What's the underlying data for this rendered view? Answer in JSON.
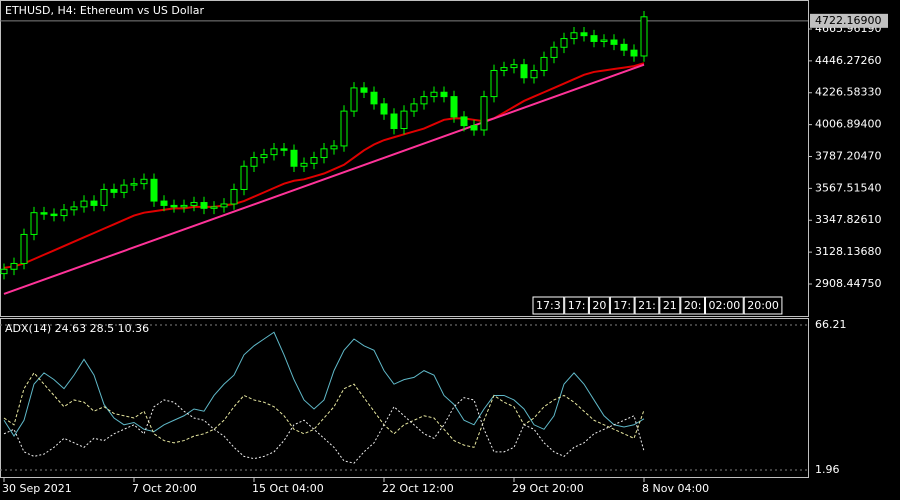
{
  "chart_data": {
    "type": "candlestick",
    "title": "ETHUSD, H4:  Ethereum vs US Dollar",
    "categories": [
      "30 Sep 2021",
      null,
      null,
      null,
      null,
      null,
      null,
      null,
      null,
      null,
      null,
      null,
      null,
      "7 Oct 20:00",
      null,
      null,
      null,
      null,
      null,
      null,
      null,
      null,
      null,
      null,
      null,
      "15 Oct 04:00",
      null,
      null,
      null,
      null,
      null,
      null,
      null,
      null,
      null,
      null,
      null,
      null,
      "22 Oct 12:00",
      null,
      null,
      null,
      null,
      null,
      null,
      null,
      null,
      null,
      null,
      null,
      null,
      "29 Oct 20:00",
      null,
      null,
      null,
      null,
      null,
      null,
      null,
      null,
      null,
      null,
      null,
      null,
      "8 Nov 04:00"
    ],
    "open": [
      2980,
      3010,
      3050,
      3250,
      3400,
      3390,
      3380,
      3420,
      3440,
      3480,
      3450,
      3560,
      3540,
      3590,
      3600,
      3630,
      3480,
      3450,
      3440,
      3450,
      3470,
      3430,
      3440,
      3460,
      3560,
      3720,
      3780,
      3800,
      3840,
      3830,
      3720,
      3740,
      3780,
      3840,
      3860,
      4100,
      4260,
      4230,
      4150,
      4080,
      3980,
      4100,
      4150,
      4200,
      4230,
      4200,
      4060,
      4000,
      3970,
      4200,
      4380,
      4400,
      4420,
      4330,
      4380,
      4470,
      4540,
      4600,
      4640,
      4620,
      4580,
      4590,
      4560,
      4520,
      4480
    ],
    "high": [
      3050,
      3090,
      3290,
      3440,
      3440,
      3430,
      3460,
      3480,
      3520,
      3520,
      3600,
      3600,
      3630,
      3640,
      3670,
      3670,
      3520,
      3490,
      3490,
      3510,
      3510,
      3480,
      3500,
      3600,
      3760,
      3820,
      3840,
      3880,
      3880,
      3870,
      3780,
      3820,
      3880,
      3900,
      4140,
      4300,
      4300,
      4270,
      4190,
      4120,
      4140,
      4190,
      4240,
      4270,
      4270,
      4240,
      4100,
      4040,
      4240,
      4420,
      4440,
      4460,
      4460,
      4420,
      4510,
      4580,
      4640,
      4680,
      4680,
      4660,
      4630,
      4630,
      4600,
      4560,
      4790
    ],
    "low": [
      2940,
      2970,
      3010,
      3210,
      3350,
      3340,
      3340,
      3380,
      3400,
      3410,
      3410,
      3500,
      3500,
      3550,
      3560,
      3440,
      3410,
      3400,
      3400,
      3410,
      3390,
      3390,
      3400,
      3420,
      3520,
      3680,
      3740,
      3760,
      3790,
      3680,
      3680,
      3700,
      3740,
      3800,
      3820,
      4060,
      4190,
      4110,
      4040,
      3940,
      3940,
      4060,
      4110,
      4160,
      4160,
      4020,
      3960,
      3930,
      3930,
      4160,
      4340,
      4360,
      4290,
      4290,
      4340,
      4430,
      4500,
      4560,
      4580,
      4540,
      4540,
      4520,
      4480,
      4440,
      4440
    ],
    "close": [
      3010,
      3050,
      3250,
      3400,
      3390,
      3380,
      3420,
      3440,
      3480,
      3450,
      3560,
      3540,
      3590,
      3600,
      3630,
      3480,
      3450,
      3440,
      3450,
      3470,
      3430,
      3440,
      3460,
      3560,
      3720,
      3780,
      3800,
      3840,
      3830,
      3720,
      3740,
      3780,
      3840,
      3860,
      4100,
      4260,
      4230,
      4150,
      4080,
      3980,
      4100,
      4150,
      4200,
      4230,
      4200,
      4060,
      4000,
      3970,
      4200,
      4380,
      4400,
      4420,
      4330,
      4380,
      4470,
      4540,
      4600,
      4640,
      4620,
      4580,
      4590,
      4560,
      4520,
      4480,
      4750
    ],
    "candle_color": "#00ff00",
    "ylim": [
      2687.9,
      4865.8
    ],
    "yticks": [
      {
        "value": 4665.9619,
        "label": "4665.96190"
      },
      {
        "value": 4446.2726,
        "label": "4446.27260"
      },
      {
        "value": 4226.5833,
        "label": "4226.58330"
      },
      {
        "value": 4006.894,
        "label": "4006.89400"
      },
      {
        "value": 3787.2047,
        "label": "3787.20470"
      },
      {
        "value": 3567.5154,
        "label": "3567.51540"
      },
      {
        "value": 3347.8261,
        "label": "3347.82610"
      },
      {
        "value": 3128.1368,
        "label": "3128.13680"
      },
      {
        "value": 2908.4475,
        "label": "2908.44750"
      }
    ],
    "current_price": {
      "value": 4722.169,
      "label": "4722.16900"
    },
    "overlays": [
      {
        "color": "#e00000",
        "values": [
          3020,
          3030,
          3050,
          3080,
          3110,
          3140,
          3170,
          3200,
          3230,
          3260,
          3290,
          3320,
          3350,
          3380,
          3400,
          3410,
          3420,
          3430,
          3430,
          3440,
          3440,
          3440,
          3450,
          3460,
          3480,
          3510,
          3540,
          3570,
          3600,
          3620,
          3630,
          3650,
          3670,
          3700,
          3730,
          3780,
          3830,
          3870,
          3900,
          3920,
          3940,
          3960,
          3980,
          4010,
          4040,
          4050,
          4050,
          4040,
          4030,
          4050,
          4090,
          4130,
          4170,
          4200,
          4230,
          4260,
          4290,
          4320,
          4350,
          4370,
          4380,
          4390,
          4400,
          4410,
          4430
        ]
      },
      {
        "color": "#ff3399",
        "x": [
          0,
          64
        ],
        "values": [
          2840,
          4420
        ]
      }
    ],
    "time_tags": [
      "17:3",
      "17:",
      "20",
      "17:",
      "21:",
      "21",
      "20:",
      "02:00",
      "20:00"
    ],
    "indicator": {
      "label": "ADX(14)",
      "ylim": [
        -1.58,
        69.31
      ],
      "yticks": [
        66.21,
        1.96
      ],
      "series": [
        {
          "color": "#5fb8c8",
          "dash": "none",
          "values": [
            24,
            17,
            24,
            40,
            45,
            42,
            38,
            44,
            51,
            44,
            31,
            25,
            22,
            23,
            20,
            19,
            22,
            24,
            26,
            29,
            28,
            35,
            40,
            44,
            53,
            57,
            60,
            63,
            53,
            42,
            33,
            29,
            33,
            46,
            55,
            60,
            57,
            55,
            46,
            40,
            42,
            43,
            46,
            44,
            35,
            31,
            24,
            22,
            29,
            35,
            35,
            33,
            29,
            22,
            20,
            26,
            40,
            45,
            40,
            33,
            26,
            22,
            21,
            22,
            24.63
          ]
        },
        {
          "color": "#e8e8a0",
          "dash": "3 2",
          "values": [
            25,
            22,
            38,
            45,
            40,
            35,
            30,
            33,
            32,
            28,
            30,
            27,
            26,
            25,
            28,
            18,
            15,
            14,
            15,
            17,
            18,
            20,
            24,
            30,
            35,
            33,
            32,
            30,
            26,
            20,
            18,
            20,
            25,
            30,
            38,
            40,
            34,
            28,
            22,
            18,
            22,
            24,
            26,
            25,
            20,
            15,
            13,
            12,
            24,
            35,
            32,
            30,
            22,
            25,
            30,
            33,
            35,
            32,
            28,
            24,
            22,
            20,
            18,
            16,
            28.5
          ]
        },
        {
          "color": "#f0f0f0",
          "dash": "2 2",
          "values": [
            18,
            20,
            10,
            8,
            9,
            12,
            16,
            14,
            12,
            16,
            15,
            18,
            20,
            22,
            18,
            30,
            33,
            32,
            28,
            25,
            24,
            20,
            17,
            12,
            8,
            7,
            8,
            10,
            15,
            22,
            24,
            20,
            16,
            12,
            6,
            5,
            10,
            14,
            22,
            30,
            26,
            22,
            18,
            16,
            22,
            30,
            34,
            33,
            20,
            10,
            10,
            12,
            22,
            20,
            14,
            10,
            8,
            12,
            14,
            18,
            20,
            22,
            24,
            26,
            10.36
          ]
        }
      ]
    }
  }
}
